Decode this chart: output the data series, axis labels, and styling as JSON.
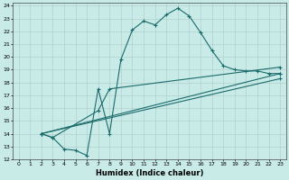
{
  "title": "",
  "xlabel": "Humidex (Indice chaleur)",
  "ylabel": "",
  "xlim": [
    -0.5,
    23.5
  ],
  "ylim": [
    12,
    24.2
  ],
  "xticks": [
    0,
    1,
    2,
    3,
    4,
    5,
    6,
    7,
    8,
    9,
    10,
    11,
    12,
    13,
    14,
    15,
    16,
    17,
    18,
    19,
    20,
    21,
    22,
    23
  ],
  "yticks": [
    12,
    13,
    14,
    15,
    16,
    17,
    18,
    19,
    20,
    21,
    22,
    23,
    24
  ],
  "background_color": "#c8ebe8",
  "grid_color": "#b0d0ce",
  "line_color": "#1a6b6b",
  "curve1_x": [
    2,
    3,
    4,
    5,
    6,
    7,
    8,
    9,
    10,
    11,
    12,
    13,
    14,
    15,
    16,
    17,
    18,
    19,
    20,
    21,
    22,
    23
  ],
  "curve1_y": [
    14.0,
    13.7,
    12.8,
    12.7,
    12.3,
    17.5,
    14.0,
    19.8,
    22.1,
    22.8,
    22.5,
    23.3,
    23.8,
    23.2,
    21.9,
    20.5,
    19.3,
    19.0,
    18.9,
    18.9,
    18.7,
    18.7
  ],
  "curve2_x": [
    2,
    3,
    7,
    8,
    23
  ],
  "curve2_y": [
    14.0,
    13.7,
    15.8,
    17.5,
    19.2
  ],
  "curve3_x": [
    2,
    23
  ],
  "curve3_y": [
    14.0,
    18.7
  ],
  "curve4_x": [
    2,
    23
  ],
  "curve4_y": [
    14.0,
    18.3
  ],
  "figsize": [
    3.2,
    2.0
  ],
  "dpi": 100
}
